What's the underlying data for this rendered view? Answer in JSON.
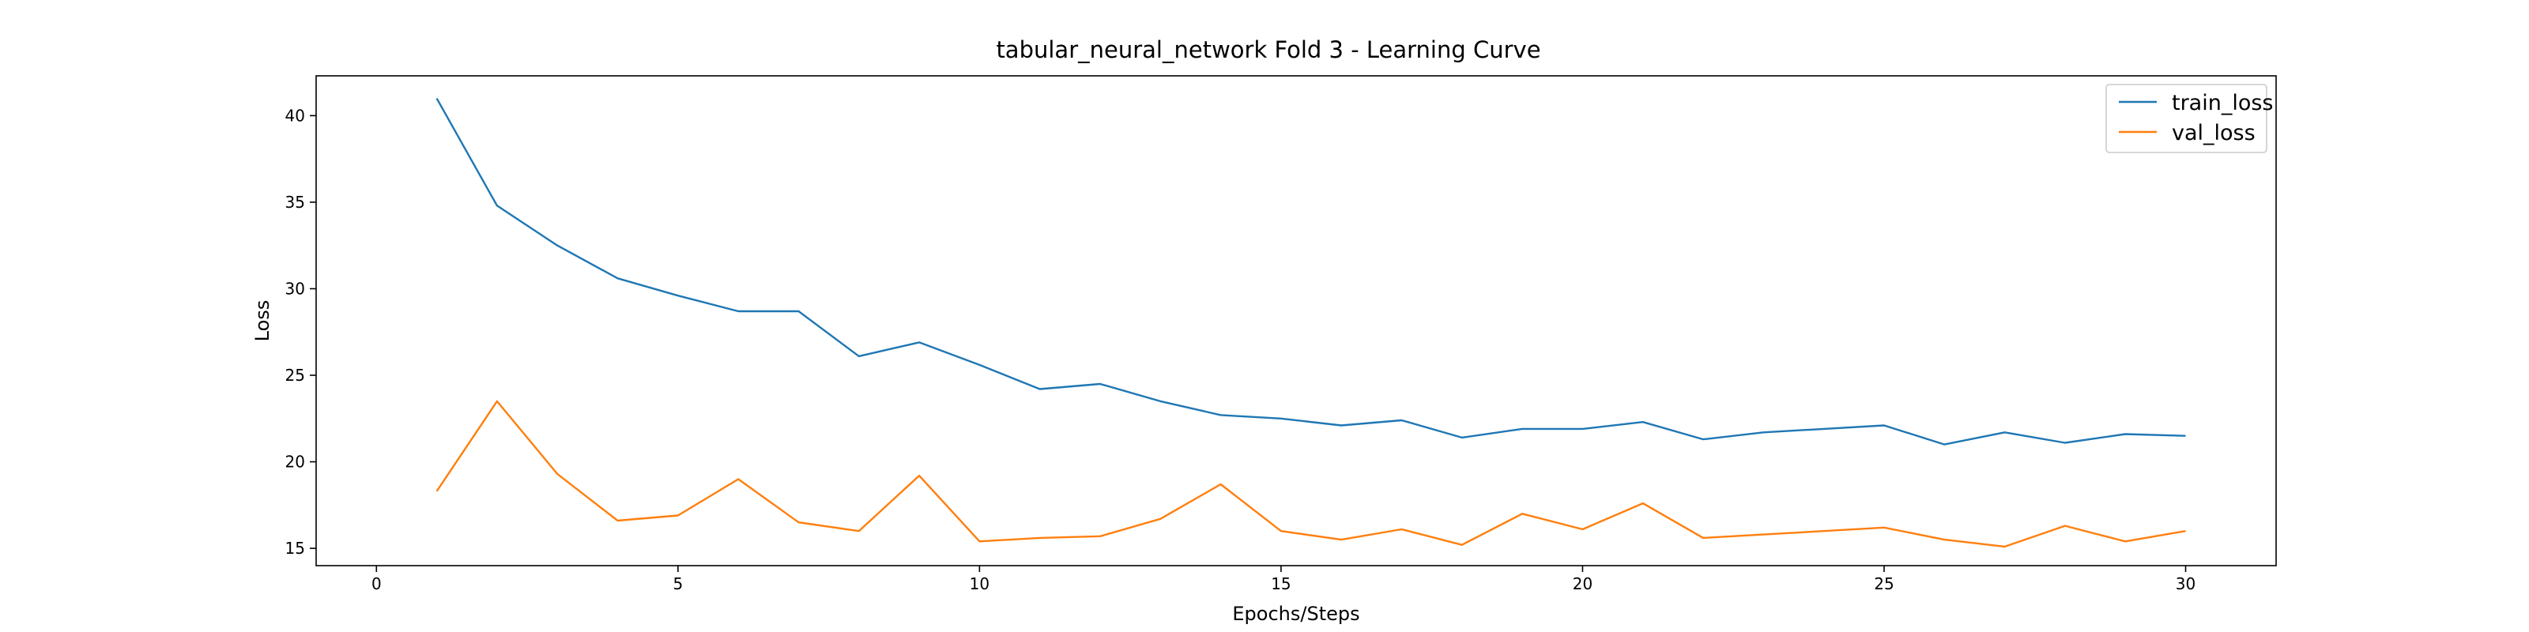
{
  "chart_data": {
    "type": "line",
    "title": "tabular_neural_network Fold 3 - Learning Curve",
    "xlabel": "Epochs/Steps",
    "ylabel": "Loss",
    "xlim": [
      -1,
      31.5
    ],
    "ylim": [
      14.0,
      42.3
    ],
    "xticks": [
      0,
      5,
      10,
      15,
      20,
      25,
      30
    ],
    "yticks": [
      15,
      20,
      25,
      30,
      35,
      40
    ],
    "grid": false,
    "legend_position": "top-right",
    "x": [
      1,
      2,
      3,
      4,
      5,
      6,
      7,
      8,
      9,
      10,
      11,
      12,
      13,
      14,
      15,
      16,
      17,
      18,
      19,
      20,
      21,
      22,
      23,
      24,
      25,
      26,
      27,
      28,
      29,
      30
    ],
    "series": [
      {
        "name": "train_loss",
        "color": "#1f77b4",
        "values": [
          41.0,
          34.8,
          32.5,
          30.6,
          29.6,
          28.7,
          28.7,
          26.1,
          26.9,
          25.6,
          24.2,
          24.5,
          23.5,
          22.7,
          22.5,
          22.1,
          22.4,
          21.4,
          21.9,
          21.9,
          22.3,
          21.3,
          21.7,
          21.9,
          22.1,
          21.0,
          21.7,
          21.1,
          21.6,
          21.5
        ]
      },
      {
        "name": "val_loss",
        "color": "#ff7f0e",
        "values": [
          18.3,
          23.5,
          19.3,
          16.6,
          16.9,
          19.0,
          16.5,
          16.0,
          19.2,
          15.4,
          15.6,
          15.7,
          16.7,
          18.7,
          16.0,
          15.5,
          16.1,
          15.2,
          17.0,
          16.1,
          17.6,
          15.6,
          15.8,
          16.0,
          16.2,
          15.5,
          15.1,
          16.3,
          15.4,
          16.0
        ]
      }
    ]
  }
}
